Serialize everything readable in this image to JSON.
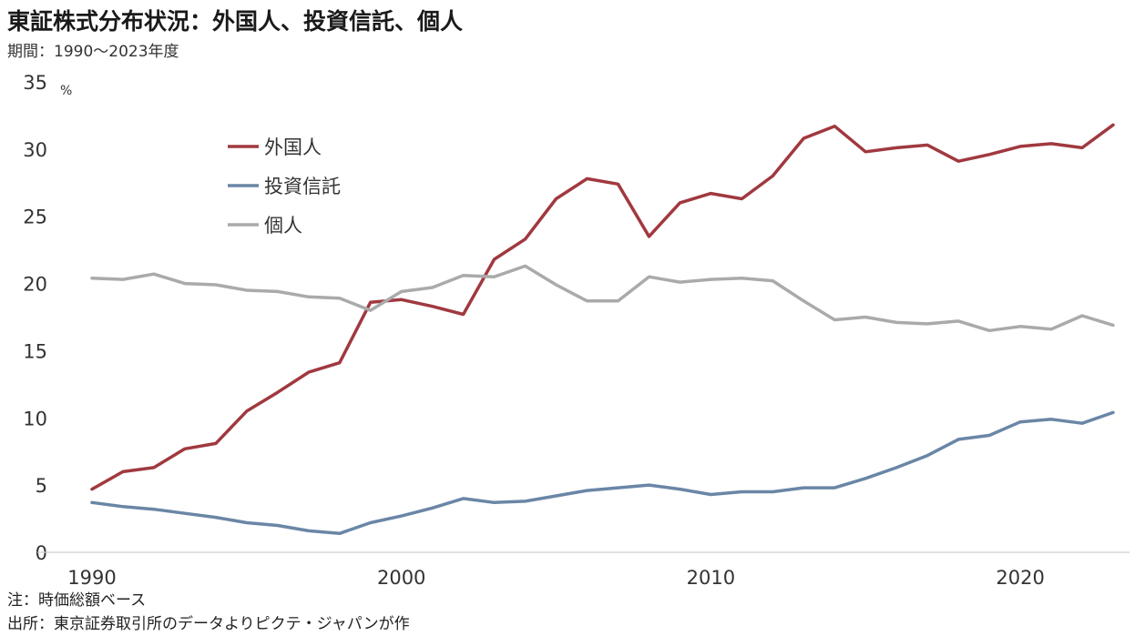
{
  "chart_data": {
    "type": "line",
    "title": "東証株式分布状況：外国人、投資信託、個人",
    "subtitle": "期間：1990～2023年度",
    "ylabel": "%",
    "ylim": [
      0,
      35
    ],
    "yticks": [
      "0",
      "5",
      "10",
      "15",
      "20",
      "25",
      "30",
      "35"
    ],
    "xlim": [
      1990,
      2023
    ],
    "xticks": [
      "1990",
      "2000",
      "2010",
      "2020"
    ],
    "legend_position": "upper-left",
    "grid": false,
    "x": [
      1990,
      1991,
      1992,
      1993,
      1994,
      1995,
      1996,
      1997,
      1998,
      1999,
      2000,
      2001,
      2002,
      2003,
      2004,
      2005,
      2006,
      2007,
      2008,
      2009,
      2010,
      2011,
      2012,
      2013,
      2014,
      2015,
      2016,
      2017,
      2018,
      2019,
      2020,
      2021,
      2022,
      2023
    ],
    "series": [
      {
        "name": "外国人",
        "color": "#a0393f",
        "values": [
          4.7,
          6.0,
          6.3,
          7.7,
          8.1,
          10.5,
          11.9,
          13.4,
          14.1,
          18.6,
          18.8,
          18.3,
          17.7,
          21.8,
          23.3,
          26.3,
          27.8,
          27.4,
          23.5,
          26.0,
          26.7,
          26.3,
          28.0,
          30.8,
          31.7,
          29.8,
          30.1,
          30.3,
          29.1,
          29.6,
          30.2,
          30.4,
          30.1,
          31.8
        ]
      },
      {
        "name": "投資信託",
        "color": "#6a86a6",
        "values": [
          3.7,
          3.4,
          3.2,
          2.9,
          2.6,
          2.2,
          2.0,
          1.6,
          1.4,
          2.2,
          2.7,
          3.3,
          4.0,
          3.7,
          3.8,
          4.2,
          4.6,
          4.8,
          5.0,
          4.7,
          4.3,
          4.5,
          4.5,
          4.8,
          4.8,
          5.5,
          6.3,
          7.2,
          8.4,
          8.7,
          9.7,
          9.9,
          9.6,
          10.4
        ]
      },
      {
        "name": "個人",
        "color": "#aaaaaa",
        "values": [
          20.4,
          20.3,
          20.7,
          20.0,
          19.9,
          19.5,
          19.4,
          19.0,
          18.9,
          18.0,
          19.4,
          19.7,
          20.6,
          20.5,
          21.3,
          19.9,
          18.7,
          18.7,
          20.5,
          20.1,
          20.3,
          20.4,
          20.2,
          18.7,
          17.3,
          17.5,
          17.1,
          17.0,
          17.2,
          16.5,
          16.8,
          16.6,
          17.6,
          16.9
        ]
      }
    ]
  },
  "notes": {
    "note": "注：時価総額ベース",
    "source": "出所：東京証券取引所のデータよりピクテ・ジャパンが作"
  }
}
